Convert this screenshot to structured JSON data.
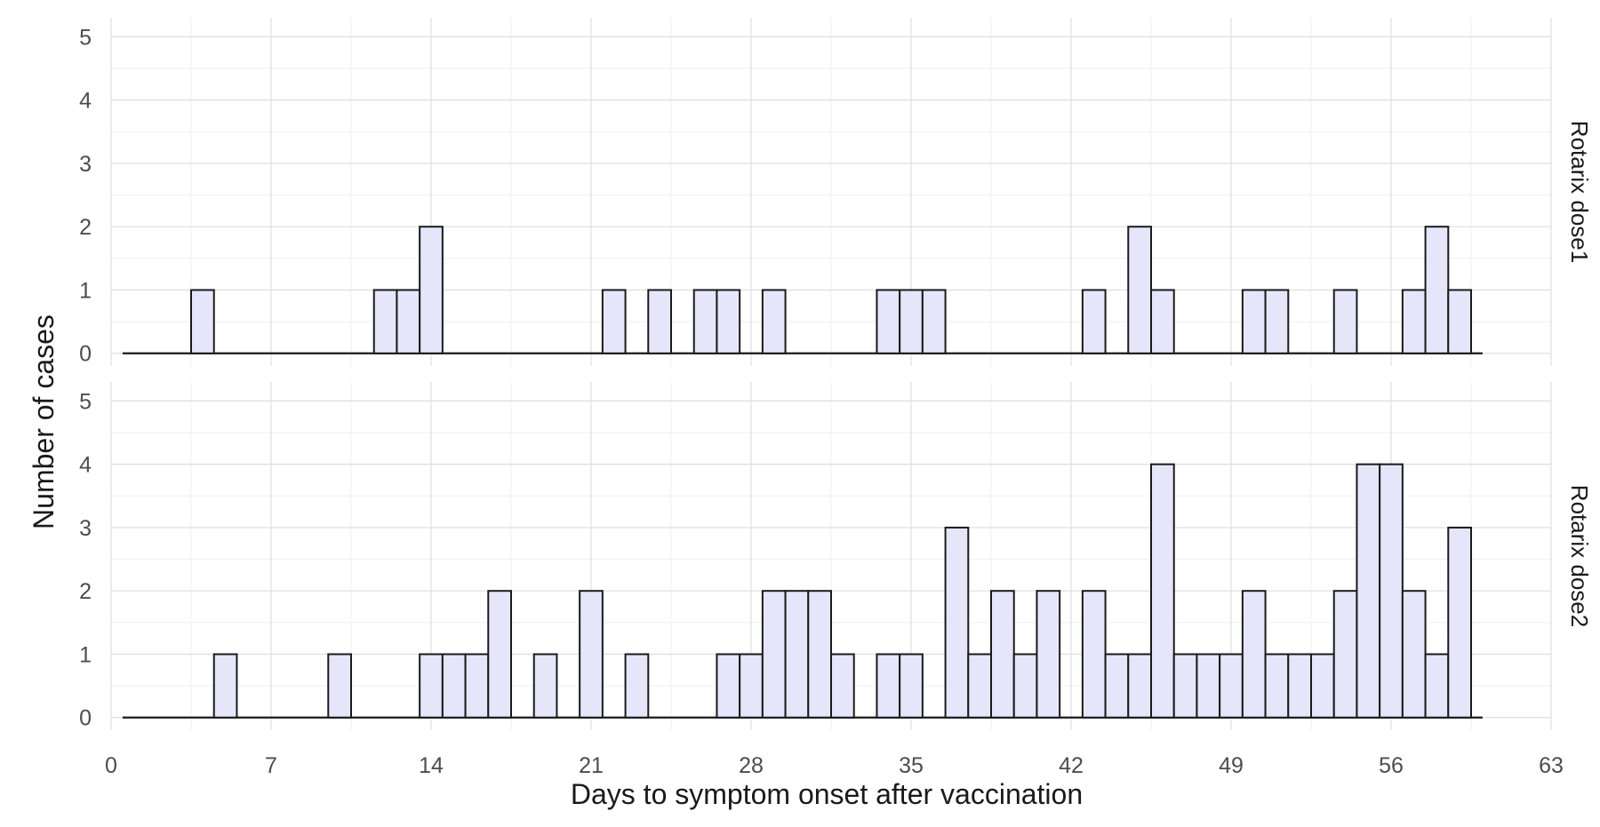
{
  "chart_data": {
    "type": "bar",
    "xlabel": "Days to symptom onset after vaccination",
    "ylabel": "Number of cases",
    "xlim": [
      0,
      63
    ],
    "ylim": [
      0,
      5
    ],
    "x_ticks": [
      0,
      7,
      14,
      21,
      28,
      35,
      42,
      49,
      56,
      63
    ],
    "y_ticks": [
      0,
      1,
      2,
      3,
      4,
      5
    ],
    "bar_fill": "#e6e6fa",
    "bar_outline": "#1a1a1a",
    "grid": true,
    "panels": [
      {
        "name": "Rotarix dose1",
        "days": [
          4,
          12,
          13,
          14,
          22,
          24,
          26,
          27,
          29,
          34,
          35,
          36,
          43,
          45,
          46,
          50,
          51,
          54,
          57,
          58,
          59
        ],
        "counts": [
          1,
          1,
          1,
          2,
          1,
          1,
          1,
          1,
          1,
          1,
          1,
          1,
          1,
          2,
          1,
          1,
          1,
          1,
          1,
          2,
          1
        ]
      },
      {
        "name": "Rotarix dose2",
        "days": [
          5,
          10,
          14,
          15,
          16,
          17,
          19,
          21,
          23,
          27,
          28,
          29,
          30,
          31,
          32,
          34,
          35,
          37,
          38,
          39,
          40,
          41,
          43,
          44,
          45,
          46,
          47,
          48,
          49,
          50,
          51,
          52,
          53,
          54,
          55,
          56,
          57,
          58,
          59
        ],
        "counts": [
          1,
          1,
          1,
          1,
          1,
          2,
          1,
          2,
          1,
          1,
          1,
          2,
          2,
          2,
          1,
          1,
          1,
          3,
          1,
          2,
          1,
          2,
          2,
          1,
          1,
          4,
          1,
          1,
          1,
          2,
          1,
          1,
          1,
          2,
          4,
          4,
          2,
          1,
          3
        ]
      }
    ]
  }
}
